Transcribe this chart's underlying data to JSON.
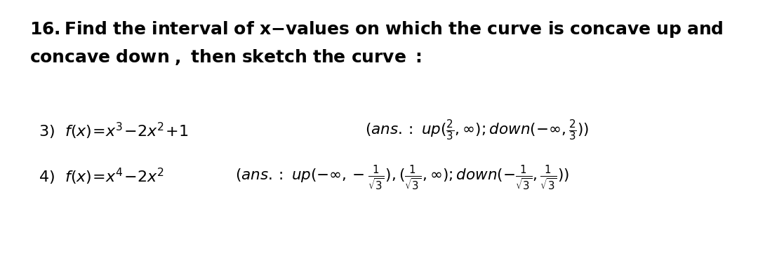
{
  "background_color": "#ffffff",
  "title_fontsize": 18,
  "item_fontsize": 16,
  "ans_fontsize": 15.5
}
